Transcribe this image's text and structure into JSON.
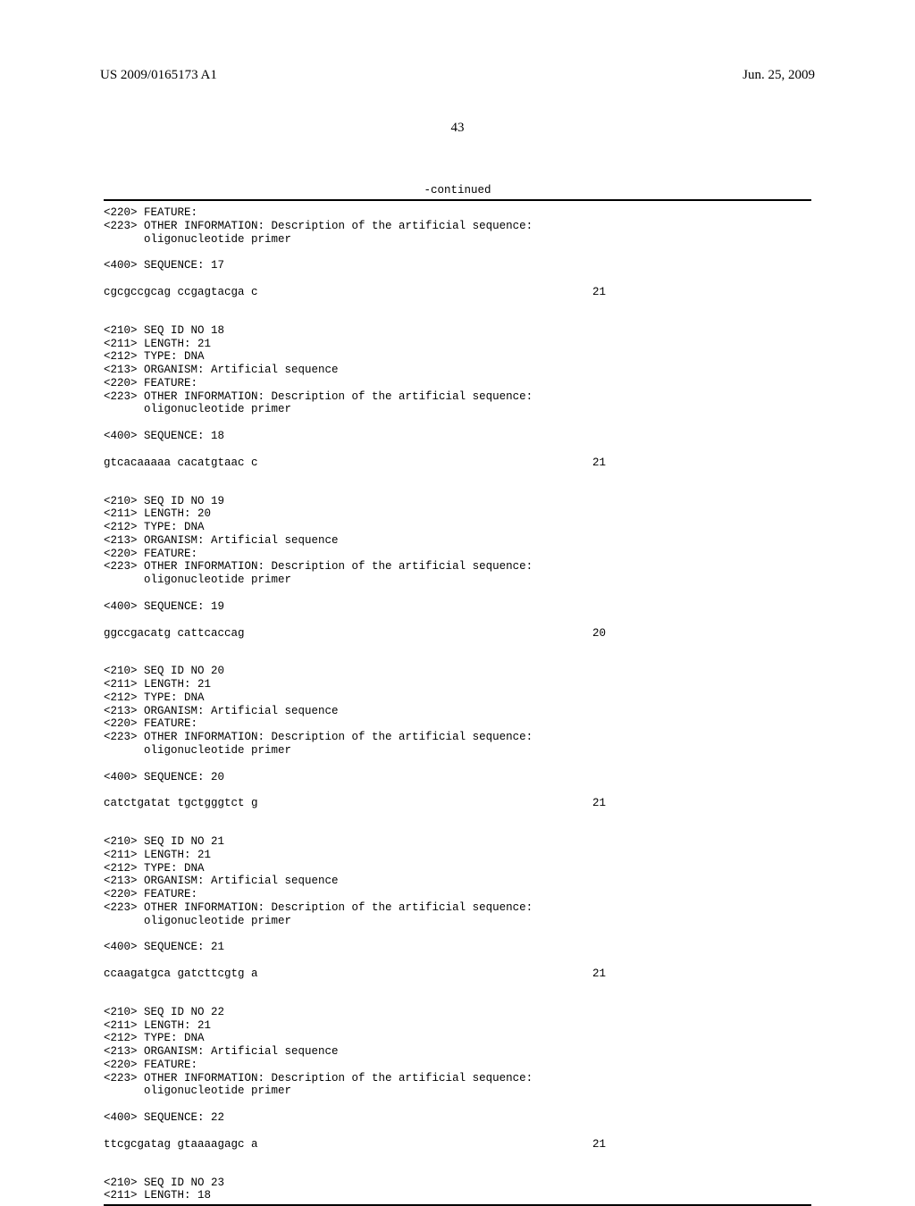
{
  "header": {
    "pub_number": "US 2009/0165173 A1",
    "pub_date": "Jun. 25, 2009"
  },
  "page_number": "43",
  "continued_label": "-continued",
  "entries": [
    {
      "pre_header": [
        "<220> FEATURE:",
        "<223> OTHER INFORMATION: Description of the artificial sequence:",
        "      oligonucleotide primer"
      ],
      "seq_label": "<400> SEQUENCE: 17",
      "sequence": "cgcgccgcag ccgagtacga c",
      "length_num": "21"
    },
    {
      "header_lines": [
        "<210> SEQ ID NO 18",
        "<211> LENGTH: 21",
        "<212> TYPE: DNA",
        "<213> ORGANISM: Artificial sequence",
        "<220> FEATURE:",
        "<223> OTHER INFORMATION: Description of the artificial sequence:",
        "      oligonucleotide primer"
      ],
      "seq_label": "<400> SEQUENCE: 18",
      "sequence": "gtcacaaaaa cacatgtaac c",
      "length_num": "21"
    },
    {
      "header_lines": [
        "<210> SEQ ID NO 19",
        "<211> LENGTH: 20",
        "<212> TYPE: DNA",
        "<213> ORGANISM: Artificial sequence",
        "<220> FEATURE:",
        "<223> OTHER INFORMATION: Description of the artificial sequence:",
        "      oligonucleotide primer"
      ],
      "seq_label": "<400> SEQUENCE: 19",
      "sequence": "ggccgacatg cattcaccag",
      "length_num": "20"
    },
    {
      "header_lines": [
        "<210> SEQ ID NO 20",
        "<211> LENGTH: 21",
        "<212> TYPE: DNA",
        "<213> ORGANISM: Artificial sequence",
        "<220> FEATURE:",
        "<223> OTHER INFORMATION: Description of the artificial sequence:",
        "      oligonucleotide primer"
      ],
      "seq_label": "<400> SEQUENCE: 20",
      "sequence": "catctgatat tgctgggtct g",
      "length_num": "21"
    },
    {
      "header_lines": [
        "<210> SEQ ID NO 21",
        "<211> LENGTH: 21",
        "<212> TYPE: DNA",
        "<213> ORGANISM: Artificial sequence",
        "<220> FEATURE:",
        "<223> OTHER INFORMATION: Description of the artificial sequence:",
        "      oligonucleotide primer"
      ],
      "seq_label": "<400> SEQUENCE: 21",
      "sequence": "ccaagatgca gatcttcgtg a",
      "length_num": "21"
    },
    {
      "header_lines": [
        "<210> SEQ ID NO 22",
        "<211> LENGTH: 21",
        "<212> TYPE: DNA",
        "<213> ORGANISM: Artificial sequence",
        "<220> FEATURE:",
        "<223> OTHER INFORMATION: Description of the artificial sequence:",
        "      oligonucleotide primer"
      ],
      "seq_label": "<400> SEQUENCE: 22",
      "sequence": "ttcgcgatag gtaaaagagc a",
      "length_num": "21"
    }
  ],
  "trailing": [
    "<210> SEQ ID NO 23",
    "<211> LENGTH: 18"
  ]
}
